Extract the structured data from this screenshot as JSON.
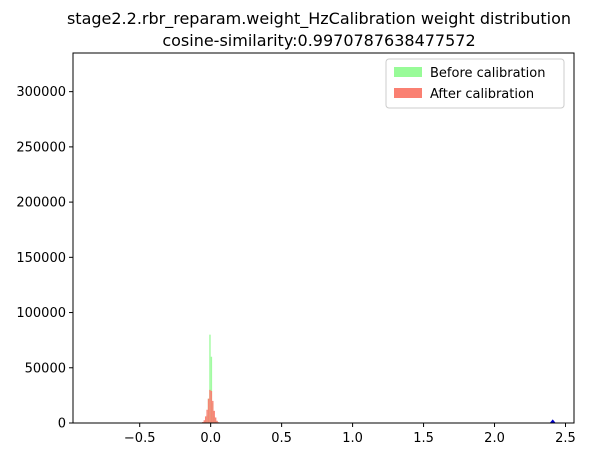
{
  "chart_data": {
    "type": "bar",
    "title": "stage2.2.rbr_reparam.weight_HzCalibration weight distribution",
    "subtitle": "cosine-similarity:0.9970787638477572",
    "xlabel": "",
    "ylabel": "",
    "xlim": [
      -0.97,
      2.56
    ],
    "ylim": [
      0,
      335000
    ],
    "grid": false,
    "legend_position": "top-right",
    "x_ticks": [
      -0.5,
      0.0,
      0.5,
      1.0,
      1.5,
      2.0,
      2.5
    ],
    "x_tick_labels": [
      "−0.5",
      "0.0",
      "0.5",
      "1.0",
      "1.5",
      "2.0",
      "2.5"
    ],
    "y_ticks": [
      0,
      50000,
      100000,
      150000,
      200000,
      250000,
      300000
    ],
    "y_tick_labels": [
      "0",
      "50000",
      "100000",
      "150000",
      "200000",
      "250000",
      "300000"
    ],
    "series": [
      {
        "name": "Before calibration",
        "color": "#98fb98",
        "bins": [
          {
            "x": -0.045,
            "value": 800
          },
          {
            "x": -0.035,
            "value": 2500
          },
          {
            "x": -0.025,
            "value": 7000
          },
          {
            "x": -0.015,
            "value": 22000
          },
          {
            "x": -0.005,
            "value": 80000
          },
          {
            "x": 0.005,
            "value": 60000
          },
          {
            "x": 0.015,
            "value": 18000
          },
          {
            "x": 0.025,
            "value": 6000
          },
          {
            "x": 0.035,
            "value": 2000
          },
          {
            "x": 0.045,
            "value": 600
          }
        ]
      },
      {
        "name": "After calibration",
        "color": "#fa8072",
        "bins": [
          {
            "x": -0.065,
            "value": 300
          },
          {
            "x": -0.055,
            "value": 900
          },
          {
            "x": -0.045,
            "value": 2500
          },
          {
            "x": -0.035,
            "value": 6000
          },
          {
            "x": -0.025,
            "value": 12000
          },
          {
            "x": -0.015,
            "value": 22000
          },
          {
            "x": -0.005,
            "value": 30000
          },
          {
            "x": 0.005,
            "value": 29000
          },
          {
            "x": 0.015,
            "value": 20000
          },
          {
            "x": 0.025,
            "value": 11000
          },
          {
            "x": 0.035,
            "value": 5000
          },
          {
            "x": 0.045,
            "value": 2000
          },
          {
            "x": 0.055,
            "value": 700
          },
          {
            "x": 0.065,
            "value": 200
          }
        ]
      }
    ],
    "outlier_marker": {
      "x": 2.41,
      "value": 1500,
      "color": "#0000cc"
    }
  }
}
